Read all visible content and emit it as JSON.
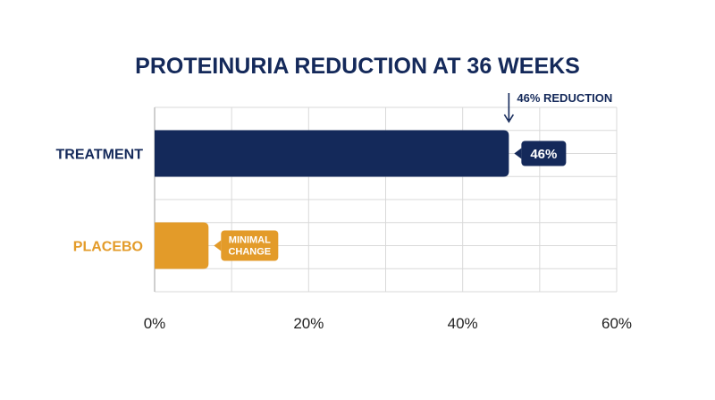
{
  "chart_data": {
    "type": "bar",
    "orientation": "horizontal",
    "title": "PROTEINURIA REDUCTION AT 36 WEEKS",
    "xlabel": "",
    "ylabel": "",
    "categories": [
      "TREATMENT",
      "PLACEBO"
    ],
    "values": [
      46,
      7
    ],
    "xlim": [
      0,
      60
    ],
    "x_ticks": [
      0,
      20,
      40,
      60
    ],
    "x_tick_labels": [
      "0%",
      "20%",
      "40%",
      "60%"
    ],
    "grid": true,
    "data_labels": [
      [
        "46%"
      ],
      [
        "MINIMAL",
        "CHANGE"
      ]
    ],
    "annotation": {
      "text": "46% REDUCTION",
      "x": 46
    },
    "colors": {
      "treatment": "#14295a",
      "placebo": "#e39b29",
      "grid": "#d9d9d9",
      "axis": "#bfbfbf"
    }
  }
}
